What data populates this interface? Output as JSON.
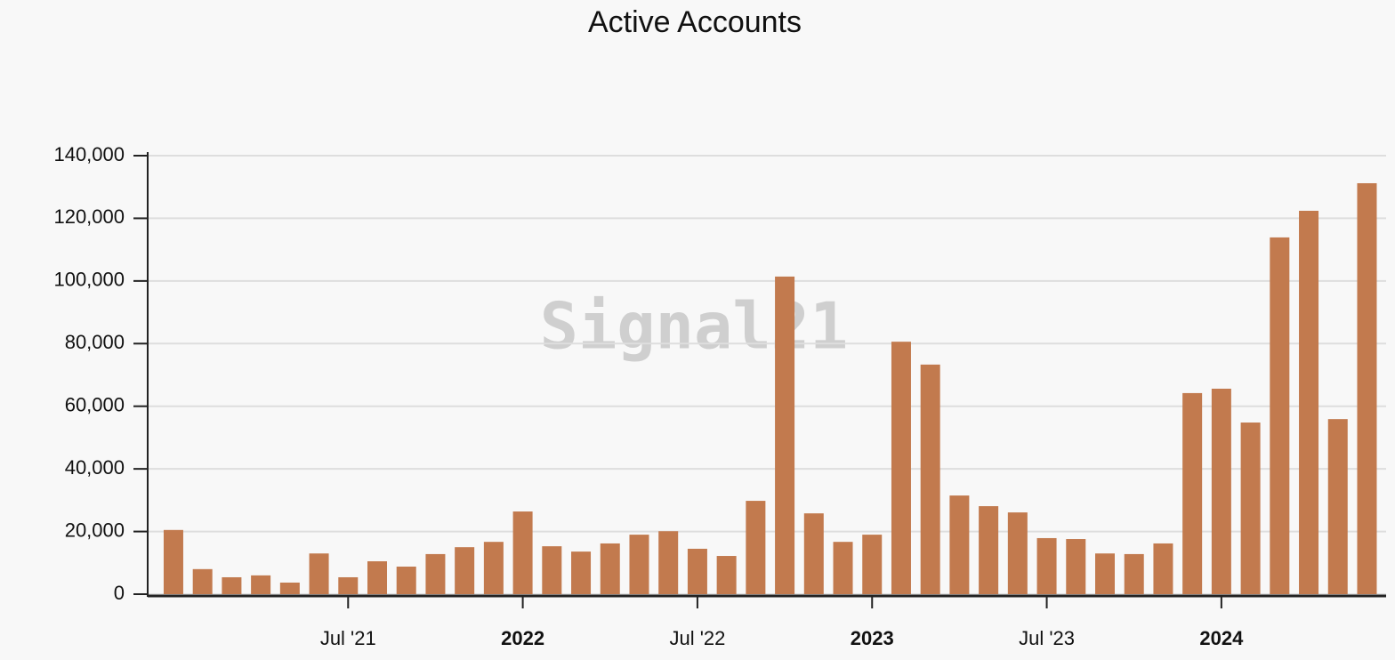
{
  "chart_data": {
    "type": "bar",
    "title": "Active Accounts",
    "watermark": "Signal21",
    "categories": [
      null,
      null,
      null,
      null,
      null,
      null,
      "Jul '21",
      null,
      null,
      null,
      null,
      null,
      "2022",
      null,
      null,
      null,
      null,
      null,
      "Jul '22",
      null,
      null,
      null,
      null,
      null,
      "2023",
      null,
      null,
      null,
      null,
      null,
      "Jul '23",
      null,
      null,
      null,
      null,
      null,
      "2024",
      null,
      null,
      null,
      null,
      null
    ],
    "values": [
      20500,
      8000,
      5400,
      6000,
      3700,
      13000,
      5400,
      10500,
      8800,
      12800,
      15000,
      16700,
      26400,
      15300,
      13600,
      16200,
      19000,
      20100,
      14500,
      12200,
      29800,
      101400,
      25800,
      16700,
      19000,
      80600,
      73300,
      31500,
      28100,
      26100,
      17900,
      17600,
      13000,
      12800,
      16200,
      64200,
      65600,
      54800,
      113900,
      122400,
      55900,
      131200
    ],
    "color": "#c27a4e",
    "ylim": [
      0,
      140000
    ],
    "yticks": [
      0,
      {
        "value": 20000,
        "label": "20,000"
      },
      {
        "value": 40000,
        "label": "40,000"
      },
      {
        "value": 60000,
        "label": "60,000"
      },
      {
        "value": 80000,
        "label": "80,000"
      },
      {
        "value": 100000,
        "label": "100,000"
      },
      {
        "value": 120000,
        "label": "120,000"
      },
      {
        "value": 140000,
        "label": "140,000"
      }
    ],
    "grid": true
  }
}
